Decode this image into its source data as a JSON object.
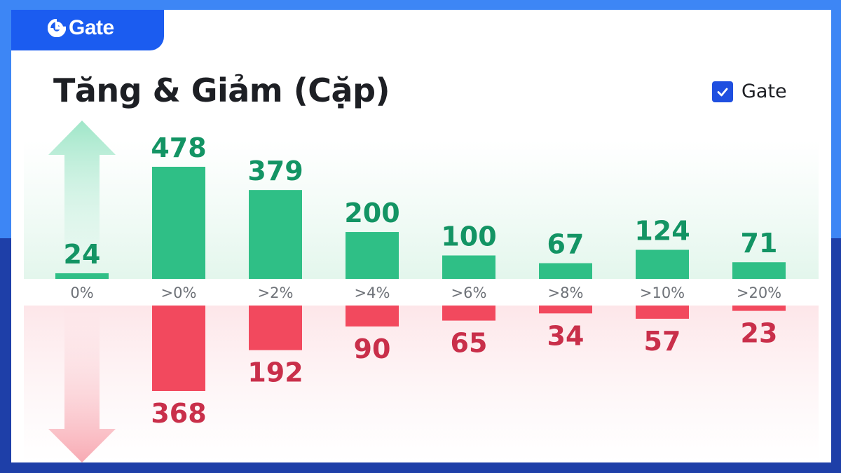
{
  "brand": {
    "name": "Gate"
  },
  "title": "Tăng & Giảm (Cặp)",
  "legend": {
    "label": "Gate",
    "checked": true
  },
  "colors": {
    "up": "#2fbf86",
    "up_label": "#139464",
    "down": "#f2495e",
    "down_label": "#c92f4a",
    "tick": "#6e7278"
  },
  "chart_data": {
    "type": "bar",
    "title": "Tăng & Giảm (Cặp)",
    "categories": [
      "0%",
      ">0%",
      ">2%",
      ">4%",
      ">6%",
      ">8%",
      ">10%",
      ">20%"
    ],
    "series": [
      {
        "name": "Tăng",
        "direction": "up",
        "values": [
          24,
          478,
          379,
          200,
          100,
          67,
          124,
          71
        ]
      },
      {
        "name": "Giảm",
        "direction": "down",
        "values": [
          null,
          368,
          192,
          90,
          65,
          34,
          57,
          23
        ]
      }
    ],
    "legend": [
      "Gate"
    ],
    "xlabel": "",
    "ylabel": ""
  }
}
